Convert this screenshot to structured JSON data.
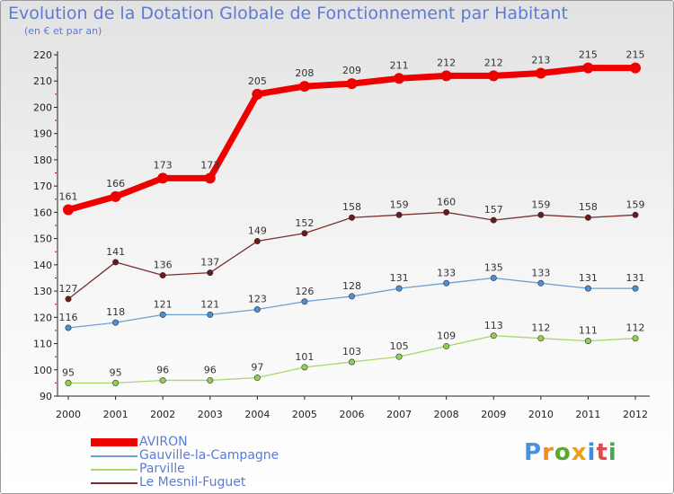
{
  "chart_data": {
    "type": "line",
    "title": "Evolution de la Dotation Globale de Fonctionnement par Habitant",
    "subtitle": "(en € et par an)",
    "xlabel": "",
    "ylabel": "",
    "ylim": [
      90,
      220
    ],
    "yticks": [
      90,
      100,
      110,
      120,
      130,
      140,
      150,
      160,
      170,
      180,
      190,
      200,
      210,
      220
    ],
    "categories": [
      "2000",
      "2001",
      "2002",
      "2003",
      "2004",
      "2005",
      "2006",
      "2007",
      "2008",
      "2009",
      "2010",
      "2011",
      "2012"
    ],
    "grid": false,
    "legend_position": "bottom-left",
    "series": [
      {
        "name": "AVIRON",
        "color": "#ee0000",
        "point_color": "#ee0000",
        "width": 7,
        "values": [
          161,
          166,
          173,
          173,
          205,
          208,
          209,
          211,
          212,
          212,
          213,
          215,
          215
        ]
      },
      {
        "name": "Gauville-la-Campagne",
        "color": "#6e9fd0",
        "point_color": "#4a90d9",
        "width": 1.3,
        "values": [
          116,
          118,
          121,
          121,
          123,
          126,
          128,
          131,
          133,
          135,
          133,
          131,
          131
        ]
      },
      {
        "name": "Parville",
        "color": "#a6d86e",
        "point_color": "#8fd14f",
        "width": 1.3,
        "values": [
          95,
          95,
          96,
          96,
          97,
          101,
          103,
          105,
          109,
          113,
          112,
          111,
          112
        ]
      },
      {
        "name": "Le Mesnil-Fuguet",
        "color": "#7a2e2e",
        "point_color": "#6a1a1a",
        "width": 1.3,
        "values": [
          127,
          141,
          136,
          137,
          149,
          152,
          158,
          159,
          160,
          157,
          159,
          158,
          159
        ]
      }
    ]
  },
  "logo": {
    "letters": [
      "P",
      "r",
      "o",
      "x",
      "i",
      "t",
      "i"
    ],
    "colors": [
      "#4a8fe0",
      "#f28c1e",
      "#5aa832",
      "#e8a21a",
      "#3f8de0",
      "#e04a4a",
      "#3fae4a"
    ]
  }
}
